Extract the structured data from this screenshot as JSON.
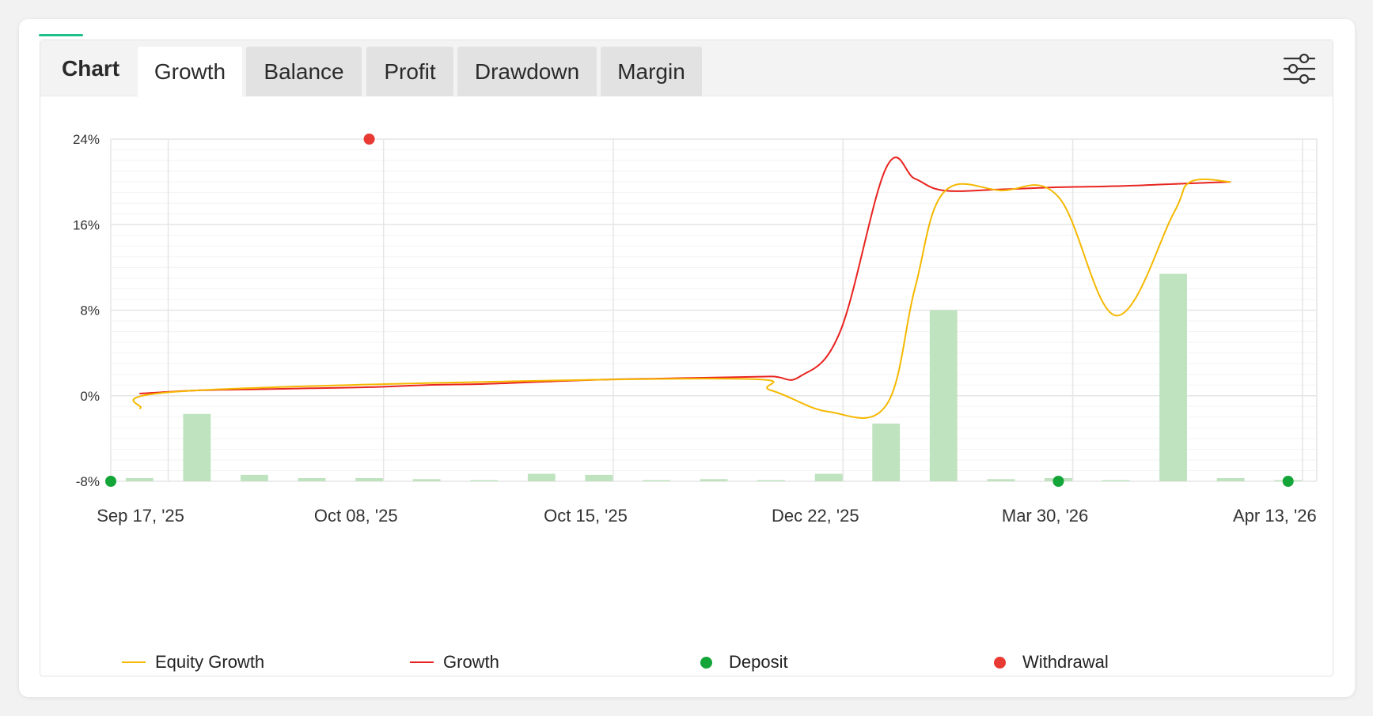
{
  "tabs": {
    "title": "Chart",
    "items": [
      "Growth",
      "Balance",
      "Profit",
      "Drawdown",
      "Margin"
    ],
    "active": "Growth"
  },
  "colors": {
    "accent": "#1dbf8a",
    "equity": "#f5b800",
    "growth": "#e8231f",
    "bars": "#bfe3bf",
    "deposit": "#13a538",
    "withdrawal": "#e83a33",
    "grid": "#e6e6e6"
  },
  "icons": {
    "settings": "sliders-icon"
  },
  "chart_data": {
    "type": "line",
    "ylim": [
      -8,
      24
    ],
    "yticks": [
      "24%",
      "16%",
      "8%",
      "0%",
      "-8%"
    ],
    "ytick_values": [
      24,
      16,
      8,
      0,
      -8
    ],
    "xlabels": [
      "Sep 17, '25",
      "Oct 08, '25",
      "Oct 15, '25",
      "Dec 22, '25",
      "Mar 30, '26",
      "Apr 13, '26"
    ],
    "trade_count": 21,
    "bars": [
      0.3,
      6.3,
      0.6,
      0.3,
      0.3,
      0.2,
      0.05,
      0.7,
      0.6,
      0.05,
      0.2,
      0.05,
      0.7,
      5.4,
      16,
      0.2,
      0.3,
      0.05,
      19.4,
      0.3,
      0.05
    ],
    "series": [
      {
        "name": "Growth",
        "x": [
          0,
          1,
          2,
          3,
          4,
          5,
          6,
          7,
          8,
          9,
          10,
          11,
          11.5,
          12.2,
          13,
          13.5,
          14,
          15,
          16,
          17,
          18,
          19
        ],
        "y": [
          0.2,
          0.5,
          0.6,
          0.7,
          0.8,
          1.0,
          1.1,
          1.3,
          1.5,
          1.6,
          1.7,
          1.8,
          1.8,
          6.0,
          21.3,
          20.3,
          19.2,
          19.3,
          19.5,
          19.6,
          19.8,
          20.0
        ]
      },
      {
        "name": "Equity Growth",
        "x": [
          0,
          1,
          10,
          11,
          12,
          13,
          13.5,
          14,
          15,
          16,
          17,
          18,
          18.3,
          19
        ],
        "y": [
          -1.2,
          0.5,
          1.6,
          0.5,
          -1.5,
          -0.9,
          10.0,
          19.0,
          19.2,
          18.6,
          7.5,
          17.0,
          20.0,
          20.0
        ]
      }
    ],
    "events": [
      {
        "type": "Deposit",
        "x": -0.5,
        "y": -8
      },
      {
        "type": "Withdrawal",
        "x": 4,
        "y": 24
      },
      {
        "type": "Deposit",
        "x": 16,
        "y": -8
      },
      {
        "type": "Deposit",
        "x": 20,
        "y": -8
      }
    ],
    "legend": [
      "Equity Growth",
      "Growth",
      "Deposit",
      "Withdrawal"
    ],
    "grid": true,
    "legend_position": "bottom"
  }
}
